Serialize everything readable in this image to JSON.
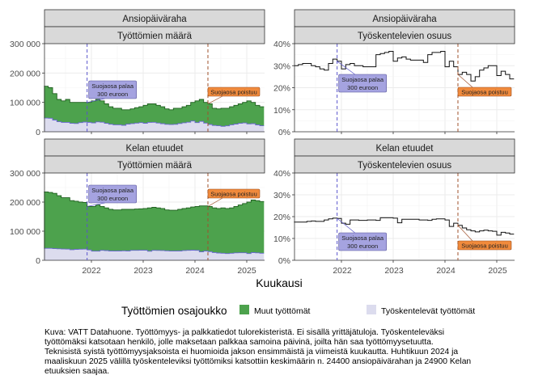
{
  "legend": {
    "title": "Työttömien osajoukko",
    "items": [
      {
        "label": "Muut työttömät",
        "color": "#4da24d"
      },
      {
        "label": "Työskentelevät työttömät",
        "color": "#dcdcee"
      }
    ]
  },
  "xlabel": "Kuukausi",
  "x_ticks": [
    "2022",
    "2023",
    "2024",
    "2025"
  ],
  "caption": [
    "Kuva: VATT Datahuone. Työttömyys- ja palkkatiedot tulorekisteristä. Ei sisällä yrittäjätuloja. Työskenteleväksi",
    "työttömäksi katsotaan henkilö, jolle maksetaan palkkaa samoina päivinä, joilta hän saa työttömyysetuutta.",
    "Teknisistä syistä työttömyysjaksoista ei huomioida jakson ensimmäistä ja viimeistä kuukautta. Huhtikuun 2024 ja",
    "maaliskuun 2025 välillä työskenteleviksi työttömiksi katsottiin keskimäärin n. 24400 ansiopäivärahan ja 24900 Kelan",
    "etuuksien saajaa."
  ],
  "annotations": {
    "blue": {
      "line1": "Suojaosa palaa",
      "line2": "300 euroon",
      "month": "2021-12",
      "color": "#5a55cc",
      "fill": "#a5a3e0"
    },
    "orange": {
      "line1": "Suojaosa poistuu",
      "month": "2024-04",
      "color": "#a0522d",
      "fill": "#f08a3c"
    }
  },
  "chart_data": [
    {
      "type": "area",
      "strip_top": "Ansiopäiväraha",
      "strip_sub": "Työttömien määrä",
      "ylim": [
        0,
        300000
      ],
      "y_ticks": [
        "0",
        "100 000",
        "200 000",
        "300 000"
      ],
      "series": [
        {
          "name": "Muut työttömät",
          "role": "total",
          "values": [
            155000,
            150000,
            130000,
            110000,
            105000,
            110000,
            100000,
            100000,
            100000,
            100000,
            100000,
            105000,
            110000,
            105000,
            95000,
            85000,
            80000,
            80000,
            75000,
            75000,
            78000,
            82000,
            85000,
            90000,
            95000,
            95000,
            90000,
            85000,
            78000,
            75000,
            80000,
            80000,
            85000,
            90000,
            100000,
            105000,
            110000,
            100000,
            95000,
            80000,
            78000,
            80000,
            80000,
            85000,
            90000,
            95000,
            100000,
            105000,
            100000,
            90000,
            85000
          ]
        },
        {
          "name": "Työskentelevät työttömät",
          "role": "working",
          "values": [
            46500,
            46000,
            40000,
            34000,
            32000,
            32000,
            28500,
            28000,
            31000,
            33000,
            32000,
            30000,
            33500,
            32500,
            28500,
            25500,
            23600,
            23600,
            22000,
            26000,
            27700,
            29500,
            31000,
            28800,
            31800,
            32300,
            29700,
            27600,
            25400,
            24400,
            25200,
            28000,
            30600,
            32400,
            36500,
            31000,
            35200,
            29500,
            24700,
            21600,
            20300,
            18400,
            20000,
            23800,
            26100,
            28500,
            30000,
            26800,
            27500,
            23400,
            20400
          ]
        }
      ]
    },
    {
      "type": "line",
      "strip_top": "Ansiopäiväraha",
      "strip_sub": "Työskentelevien osuus",
      "ylim": [
        0,
        40
      ],
      "y_ticks": [
        "0%",
        "10%",
        "20%",
        "30%",
        "40%"
      ],
      "values": [
        30,
        30.5,
        31,
        31,
        30,
        29.5,
        28.5,
        28,
        31,
        33,
        32,
        28.5,
        30.5,
        31,
        30,
        30,
        29.5,
        29.5,
        29.5,
        35,
        35.5,
        36,
        36.5,
        32,
        33.5,
        34,
        33,
        32.5,
        32.5,
        32.5,
        31.5,
        35,
        36,
        36,
        36.5,
        29.5,
        32,
        29.5,
        26,
        27,
        26,
        23,
        25,
        28,
        29,
        30,
        30,
        25.5,
        27.5,
        26,
        24
      ]
    },
    {
      "type": "area",
      "strip_top": "Kelan etuudet",
      "strip_sub": "Työttömien määrä",
      "ylim": [
        0,
        300000
      ],
      "y_ticks": [
        "0",
        "100 000",
        "200 000",
        "300 000"
      ],
      "series": [
        {
          "name": "Muut työttömät",
          "role": "total",
          "values": [
            235000,
            233000,
            230000,
            222000,
            215000,
            215000,
            205000,
            203000,
            200000,
            199000,
            185000,
            185000,
            190000,
            185000,
            180000,
            175000,
            173000,
            173000,
            175000,
            175000,
            175000,
            176000,
            177000,
            178000,
            180000,
            182000,
            180000,
            178000,
            173000,
            172000,
            172000,
            175000,
            178000,
            180000,
            183000,
            185000,
            187000,
            187000,
            185000,
            180000,
            178000,
            180000,
            178000,
            180000,
            185000,
            190000,
            195000,
            200000,
            207000,
            205000,
            202000
          ]
        },
        {
          "name": "Työskentelevät työttömät",
          "role": "working",
          "values": [
            41000,
            41000,
            40000,
            39500,
            38700,
            38300,
            36500,
            37600,
            38000,
            38400,
            35500,
            31500,
            31400,
            34200,
            33300,
            32000,
            31700,
            32000,
            32400,
            32000,
            34100,
            34300,
            34500,
            34400,
            31000,
            34200,
            33800,
            33500,
            32500,
            31800,
            31800,
            32000,
            33500,
            34200,
            34800,
            34200,
            29000,
            31800,
            29600,
            26600,
            24900,
            24300,
            23100,
            24300,
            25500,
            25700,
            25900,
            23000,
            26500,
            25600,
            24200
          ]
        }
      ]
    },
    {
      "type": "line",
      "strip_top": "Kelan etuudet",
      "strip_sub": "Työskentelevien osuus",
      "ylim": [
        0,
        40
      ],
      "y_ticks": [
        "0%",
        "10%",
        "20%",
        "30%",
        "40%"
      ],
      "values": [
        17.5,
        17.5,
        17.5,
        17.8,
        18,
        17.8,
        17.8,
        18.5,
        19,
        19.3,
        19.2,
        17,
        16.5,
        18.5,
        18.5,
        18.3,
        18.3,
        18.5,
        18.5,
        18.3,
        19.5,
        19.5,
        19.5,
        19.3,
        17.2,
        18.8,
        18.8,
        18.8,
        18.8,
        18.5,
        18.5,
        18.3,
        18.8,
        19,
        19,
        18.5,
        15.5,
        17,
        16,
        14.8,
        14,
        13.5,
        13,
        13.5,
        13.8,
        13.5,
        13.3,
        11.5,
        12.8,
        12.5,
        12
      ]
    }
  ],
  "months": [
    "2021-02",
    "2021-03",
    "2021-04",
    "2021-05",
    "2021-06",
    "2021-07",
    "2021-08",
    "2021-09",
    "2021-10",
    "2021-11",
    "2021-12",
    "2022-01",
    "2022-02",
    "2022-03",
    "2022-04",
    "2022-05",
    "2022-06",
    "2022-07",
    "2022-08",
    "2022-09",
    "2022-10",
    "2022-11",
    "2022-12",
    "2023-01",
    "2023-02",
    "2023-03",
    "2023-04",
    "2023-05",
    "2023-06",
    "2023-07",
    "2023-08",
    "2023-09",
    "2023-10",
    "2023-11",
    "2023-12",
    "2024-01",
    "2024-02",
    "2024-03",
    "2024-04",
    "2024-05",
    "2024-06",
    "2024-07",
    "2024-08",
    "2024-09",
    "2024-10",
    "2024-11",
    "2024-12",
    "2025-01",
    "2025-02",
    "2025-03",
    "2025-04"
  ]
}
